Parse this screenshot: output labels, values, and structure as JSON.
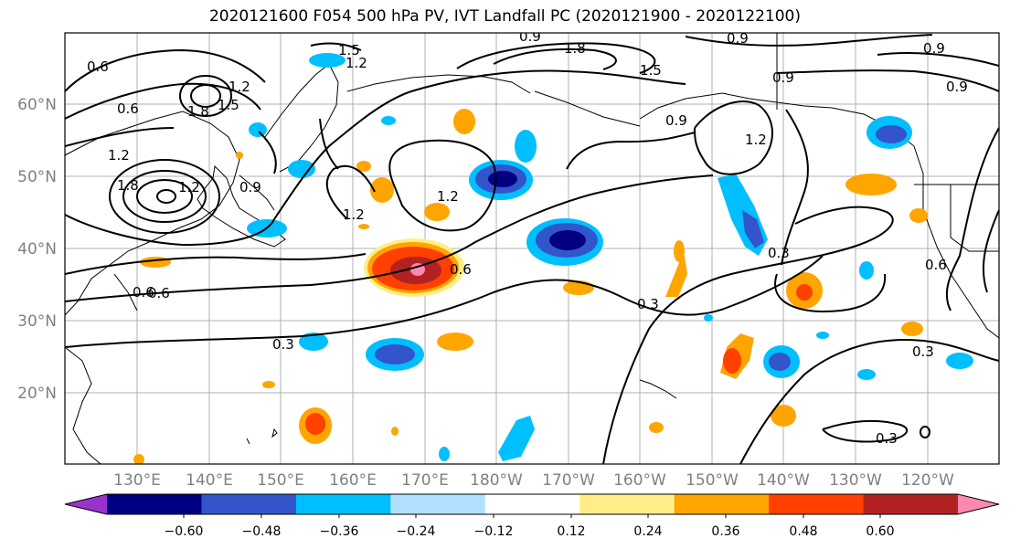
{
  "title": "2020121600 F054 500 hPa PV, IVT Landfall PC (2020121900 - 2020122100)",
  "lon_ticks": [
    "130°E",
    "140°E",
    "150°E",
    "160°E",
    "170°E",
    "180°W",
    "170°W",
    "160°W",
    "150°W",
    "140°W",
    "130°W",
    "120°W"
  ],
  "lat_ticks": [
    "60°N",
    "50°N",
    "40°N",
    "30°N",
    "20°N"
  ],
  "colorbar": {
    "colors": [
      "#9933cc",
      "#000080",
      "#3355cc",
      "#00bfff",
      "#b0e0ff",
      "#ffffff",
      "#ffee88",
      "#ffa500",
      "#ff4000",
      "#b22222",
      "#ff88b0"
    ],
    "labels": [
      "−0.60",
      "−0.48",
      "−0.36",
      "−0.24",
      "−0.12",
      "0.12",
      "0.24",
      "0.36",
      "0.48",
      "0.60"
    ]
  },
  "contour_labels": [
    "1.5",
    "1.2",
    "0.9",
    "1.8",
    "0.9",
    "1.5",
    "0.9",
    "0.9",
    "0.6",
    "1.8",
    "1.5",
    "1.2",
    "0.6",
    "1.2",
    "1.8",
    "1.2",
    "0.9",
    "0.9",
    "1.2",
    "1.2",
    "1.2",
    "0.6",
    "0.3",
    "0.3",
    "0.3",
    "0.3",
    "0.3",
    "0.6",
    "0.6",
    "0.9",
    "0.6"
  ]
}
